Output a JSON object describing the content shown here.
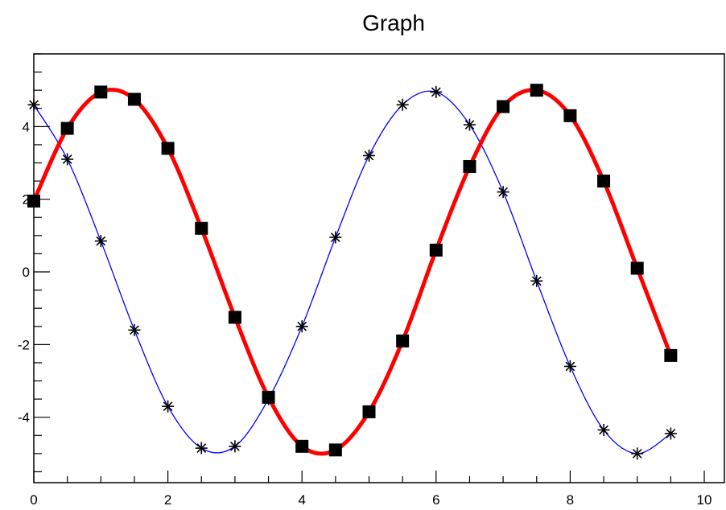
{
  "chart_data": {
    "type": "line",
    "title": "Graph",
    "xlabel": "",
    "ylabel": "",
    "xlim": [
      0,
      10.3
    ],
    "ylim": [
      -5.8,
      6.0
    ],
    "x_ticks": [
      {
        "value": 0,
        "label": "0"
      },
      {
        "value": 2,
        "label": "2"
      },
      {
        "value": 4,
        "label": "4"
      },
      {
        "value": 6,
        "label": "6"
      },
      {
        "value": 8,
        "label": "8"
      },
      {
        "value": 10,
        "label": "10"
      }
    ],
    "y_ticks": [
      {
        "value": -4,
        "label": "-4"
      },
      {
        "value": -2,
        "label": "-2"
      },
      {
        "value": 0,
        "label": "0"
      },
      {
        "value": 2,
        "label": "2"
      },
      {
        "value": 4,
        "label": "4"
      }
    ],
    "grid": false,
    "legend": "none",
    "series": [
      {
        "line_color": "#ff0000",
        "marker": "square",
        "marker_color": "#000000",
        "x": [
          0,
          0.5,
          1,
          1.5,
          2,
          2.5,
          3,
          3.5,
          4,
          4.5,
          5,
          5.5,
          6,
          6.5,
          7,
          7.5,
          8,
          8.5,
          9,
          9.5
        ],
        "y": [
          1.95,
          3.95,
          4.95,
          4.75,
          3.4,
          1.2,
          -1.25,
          -3.45,
          -4.8,
          -4.9,
          -3.85,
          -1.9,
          0.6,
          2.9,
          4.55,
          5.0,
          4.3,
          2.5,
          0.1,
          -2.3
        ]
      },
      {
        "line_color": "#0000ff",
        "marker": "asterisk",
        "marker_color": "#000000",
        "x": [
          0,
          0.5,
          1,
          1.5,
          2,
          2.5,
          3,
          3.5,
          4,
          4.5,
          5,
          5.5,
          6,
          6.5,
          7,
          7.5,
          8,
          8.5,
          9,
          9.5
        ],
        "y": [
          4.6,
          3.1,
          0.85,
          -1.6,
          -3.7,
          -4.85,
          -4.8,
          -3.5,
          -1.5,
          0.95,
          3.2,
          4.6,
          4.95,
          4.05,
          2.2,
          -0.25,
          -2.6,
          -4.35,
          -5.0,
          -4.45
        ]
      }
    ]
  }
}
